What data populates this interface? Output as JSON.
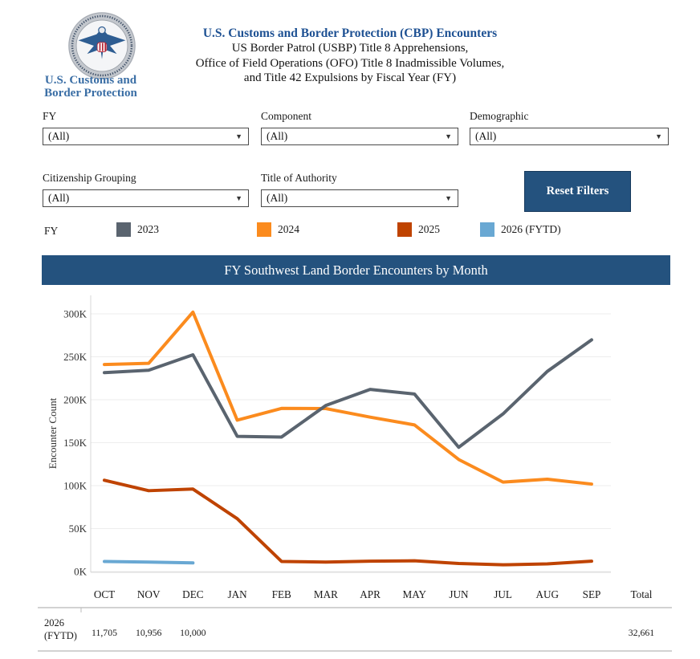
{
  "header": {
    "logo_text_line1": "U.S. Customs and",
    "logo_text_line2": "Border Protection",
    "title_line1": "U.S. Customs and Border Protection (CBP) Encounters",
    "title_line2": "US Border Patrol (USBP) Title 8 Apprehensions,",
    "title_line3": "Office of Field Operations (OFO) Title 8 Inadmissible Volumes,",
    "title_line4": "and Title 42 Expulsions by Fiscal Year (FY)"
  },
  "filters": {
    "fy": {
      "label": "FY",
      "value": "(All)"
    },
    "component": {
      "label": "Component",
      "value": "(All)"
    },
    "demographic": {
      "label": "Demographic",
      "value": "(All)"
    },
    "citizenship": {
      "label": "Citizenship Grouping",
      "value": "(All)"
    },
    "authority": {
      "label": "Title of Authority",
      "value": "(All)"
    },
    "reset_button": "Reset Filters",
    "dropdown_arrow": "▼"
  },
  "legend": {
    "label": "FY",
    "items": [
      {
        "label": "2023",
        "color": "#5a646f"
      },
      {
        "label": "2024",
        "color": "#fb8b1e"
      },
      {
        "label": "2025",
        "color": "#bf4300"
      },
      {
        "label": "2026 (FYTD)",
        "color": "#69a8d3"
      }
    ]
  },
  "chart_banner": "FY Southwest Land Border Encounters by Month",
  "chart_data": {
    "type": "line",
    "title": "FY Southwest Land Border Encounters by Month",
    "ylabel": "Encounter Count",
    "x": [
      "OCT",
      "NOV",
      "DEC",
      "JAN",
      "FEB",
      "MAR",
      "APR",
      "MAY",
      "JUN",
      "JUL",
      "AUG",
      "SEP"
    ],
    "y_ticks": [
      "0K",
      "50K",
      "100K",
      "150K",
      "200K",
      "250K",
      "300K"
    ],
    "ylim": [
      0,
      300000
    ],
    "grid": true,
    "legend_position": "top",
    "series": [
      {
        "name": "2023",
        "color": "#5a646f",
        "values": [
          231500,
          234300,
          252300,
          157400,
          156600,
          193300,
          212000,
          206700,
          144600,
          183500,
          233000,
          269700
        ]
      },
      {
        "name": "2024",
        "color": "#fb8b1e",
        "values": [
          241000,
          242400,
          302000,
          176200,
          189900,
          189700,
          179700,
          170700,
          130400,
          104100,
          107500,
          101800
        ]
      },
      {
        "name": "2025",
        "color": "#bf4300",
        "values": [
          106300,
          94100,
          96000,
          61500,
          11700,
          11000,
          12000,
          12500,
          9300,
          7800,
          8900,
          12000
        ]
      },
      {
        "name": "2026 (FYTD)",
        "color": "#69a8d3",
        "values": [
          11705,
          10956,
          10000
        ]
      }
    ]
  },
  "table": {
    "total_header": "Total",
    "rows": [
      {
        "label_line1": "2026",
        "label_line2": "(FYTD)",
        "values": [
          "11,705",
          "10,956",
          "10,000",
          "",
          "",
          "",
          "",
          "",
          "",
          "",
          "",
          ""
        ],
        "total": "32,661"
      }
    ]
  }
}
